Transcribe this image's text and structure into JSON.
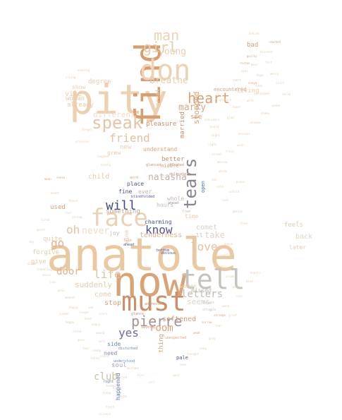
{
  "cloud": {
    "words": [
      {
        "text": "anatole",
        "color": "#ebc9a0"
      },
      {
        "text": "pity",
        "color": "#edd0b0"
      },
      {
        "text": "now",
        "color": "#d9a376"
      },
      {
        "text": "find",
        "color": "#d99c6c"
      },
      {
        "text": "don",
        "color": "#edd3b5"
      },
      {
        "text": "must",
        "color": "#c9916b"
      },
      {
        "text": "tell",
        "color": "#c7c2bd"
      },
      {
        "text": "face",
        "color": "#ead2b6"
      },
      {
        "text": "speak",
        "color": "#e6c5a6"
      },
      {
        "text": "tears",
        "color": "#8a8290"
      },
      {
        "text": "man",
        "color": "#edd3b5"
      },
      {
        "text": "girl",
        "color": "#e8ccad"
      },
      {
        "text": "heart",
        "color": "#d9a376"
      },
      {
        "text": "pierre",
        "color": "#a29294"
      },
      {
        "text": "love",
        "color": "#e0c4a8"
      },
      {
        "text": "will",
        "color": "#3c4a86"
      },
      {
        "text": "know",
        "color": "#4a5590"
      },
      {
        "text": "life",
        "color": "#e2c2a0"
      },
      {
        "text": "letters",
        "color": "#c3bab6"
      },
      {
        "text": "friend",
        "color": "#e2c2a0"
      },
      {
        "text": "young",
        "color": "#ead0b2"
      },
      {
        "text": "breathe",
        "color": "#e8ccab"
      },
      {
        "text": "marry",
        "color": "#d9aa84"
      },
      {
        "text": "natasha",
        "color": "#c5b1a8"
      },
      {
        "text": "oh",
        "color": "#e2c2a0"
      },
      {
        "text": "go",
        "color": "#e0b48d"
      },
      {
        "text": "door",
        "color": "#e0b48d"
      },
      {
        "text": "yes",
        "color": "#6b6e95"
      },
      {
        "text": "room",
        "color": "#d9a376"
      },
      {
        "text": "club",
        "color": "#c8c49e"
      },
      {
        "text": "never",
        "color": "#efdcc6"
      },
      {
        "text": "suddenly",
        "color": "#e8ccab"
      },
      {
        "text": "take",
        "color": "#e0d4c8"
      },
      {
        "text": "stopped",
        "color": "#d9a376"
      },
      {
        "text": "married",
        "color": "#c98f6a"
      },
      {
        "text": "different",
        "color": "#efdcc6"
      },
      {
        "text": "comet",
        "color": "#d7d0ca"
      },
      {
        "text": "softened",
        "color": "#d6a07a"
      },
      {
        "text": "seems",
        "color": "#ddd3c9"
      },
      {
        "text": "stop",
        "color": "#d9a376"
      },
      {
        "text": "come",
        "color": "#e8ccab"
      },
      {
        "text": "tenderness",
        "color": "#e0b48d"
      },
      {
        "text": "something",
        "color": "#c7a992"
      },
      {
        "text": "pleasure",
        "color": "#c98f6a"
      },
      {
        "text": "soul",
        "color": "#a7a7c2"
      },
      {
        "text": "need",
        "color": "#8a8ab0"
      },
      {
        "text": "side",
        "color": "#6a86b5"
      },
      {
        "text": "thing",
        "color": "#d9a376"
      },
      {
        "text": "happened",
        "color": "#5a7bb3"
      },
      {
        "text": "better",
        "color": "#c9916b"
      },
      {
        "text": "understand",
        "color": "#d9a376"
      },
      {
        "text": "middle",
        "color": "#d9a376"
      },
      {
        "text": "place",
        "color": "#4a5590"
      },
      {
        "text": "fine",
        "color": "#4a5590"
      },
      {
        "text": "charming",
        "color": "#4a5590"
      },
      {
        "text": "ever",
        "color": "#c3bab6"
      },
      {
        "text": "whole",
        "color": "#c3bab6"
      },
      {
        "text": "hours",
        "color": "#c3bab6"
      },
      {
        "text": "open",
        "color": "#4a70b0"
      },
      {
        "text": "living",
        "color": "#ead0b2"
      },
      {
        "text": "see",
        "color": "#d9a376"
      },
      {
        "text": "vile",
        "color": "#e8ccab"
      },
      {
        "text": "woman",
        "color": "#e8ccab"
      },
      {
        "text": "already",
        "color": "#e8ccab"
      },
      {
        "text": "degree",
        "color": "#e8ccab"
      },
      {
        "text": "show",
        "color": "#e8ccab"
      },
      {
        "text": "quite",
        "color": "#e8ccab"
      },
      {
        "text": "forgive",
        "color": "#e8ccab"
      },
      {
        "text": "give",
        "color": "#e8ccab"
      },
      {
        "text": "used",
        "color": "#d9a376"
      },
      {
        "text": "child",
        "color": "#e8ccab"
      },
      {
        "text": "bad",
        "color": "#d9a376"
      },
      {
        "text": "feels",
        "color": "#e8ccab"
      },
      {
        "text": "back",
        "color": "#e0d4c8"
      },
      {
        "text": "later",
        "color": "#e8ccab"
      },
      {
        "text": "missed",
        "color": "#c3bab6"
      },
      {
        "text": "women",
        "color": "#e8ccab"
      },
      {
        "text": "great",
        "color": "#e8ccab"
      },
      {
        "text": "pale",
        "color": "#4a5590"
      },
      {
        "text": "joy",
        "color": "#c3bab6"
      },
      {
        "text": "wine",
        "color": "#e8ccab"
      },
      {
        "text": "ll",
        "color": "#c3bab6"
      },
      {
        "text": "new",
        "color": "#e8ccab"
      },
      {
        "text": "grew",
        "color": "#e8ccab"
      },
      {
        "text": "time",
        "color": "#e8ccab"
      },
      {
        "text": "encountered",
        "color": "#d9a376"
      },
      {
        "text": "ahead",
        "color": "#4a5590"
      },
      {
        "text": "blindfolded",
        "color": "#4a5590"
      },
      {
        "text": "addressed",
        "color": "#c98f6a"
      },
      {
        "text": "glance",
        "color": "#c98f6a"
      },
      {
        "text": "several",
        "color": "#c98f6a"
      },
      {
        "text": "unexpected",
        "color": "#d9a376"
      },
      {
        "text": "understood",
        "color": "#6a86b5"
      },
      {
        "text": "right",
        "color": "#6a86b5"
      },
      {
        "text": "disturbed",
        "color": "#6a86b5"
      },
      {
        "text": "ahead",
        "color": "#a29294"
      },
      {
        "text": "delicately",
        "color": "#c98f6a"
      },
      {
        "text": "flashed",
        "color": "#c98f6a"
      },
      {
        "text": "glanced",
        "color": "#c98f6a"
      },
      {
        "text": "word",
        "color": "#d9a376"
      },
      {
        "text": "talk",
        "color": "#d9a376"
      },
      {
        "text": "free",
        "color": "#c3bab6"
      },
      {
        "text": "bottom",
        "color": "#4a5590"
      },
      {
        "text": "obvious",
        "color": "#4a5590"
      },
      {
        "text": "evening",
        "color": "#e8ccab"
      },
      {
        "text": "crying",
        "color": "#e8ccab"
      },
      {
        "text": "forget",
        "color": "#e8ccab"
      },
      {
        "text": "princess",
        "color": "#e8ccab"
      },
      {
        "text": "doubt",
        "color": "#e8ccab"
      },
      {
        "text": "mean",
        "color": "#d9a376"
      },
      {
        "text": "sense",
        "color": "#d9a376"
      },
      {
        "text": "laughed",
        "color": "#e8ccab"
      },
      {
        "text": "kindly",
        "color": "#e8ccab"
      },
      {
        "text": "vast",
        "color": "#e8ccab"
      },
      {
        "text": "exclaimed",
        "color": "#e8ccab"
      },
      {
        "text": "gesture",
        "color": "#e8ccab"
      },
      {
        "text": "blushed",
        "color": "#e8ccab"
      },
      {
        "text": "dear",
        "color": "#e8ccab"
      },
      {
        "text": "eyes",
        "color": "#e8ccab"
      },
      {
        "text": "hope",
        "color": "#e8ccab"
      },
      {
        "text": "hand",
        "color": "#e8ccab"
      },
      {
        "text": "thought",
        "color": "#c3bab6"
      },
      {
        "text": "struggle",
        "color": "#c3bab6"
      },
      {
        "text": "weak",
        "color": "#d9a376"
      },
      {
        "text": "sorrow",
        "color": "#d9a376"
      },
      {
        "text": "strange",
        "color": "#d9a376"
      },
      {
        "text": "hearts",
        "color": "#e8ccab"
      },
      {
        "text": "mind",
        "color": "#e8ccab"
      },
      {
        "text": "clear",
        "color": "#e8ccab"
      },
      {
        "text": "gentle",
        "color": "#e8ccab"
      },
      {
        "text": "rose",
        "color": "#e8ccab"
      },
      {
        "text": "unfold",
        "color": "#e8ccab"
      },
      {
        "text": "pious",
        "color": "#e8ccab"
      },
      {
        "text": "words",
        "color": "#e8ccab"
      },
      {
        "text": "truly",
        "color": "#e8ccab"
      },
      {
        "text": "wish",
        "color": "#e8ccab"
      },
      {
        "text": "anxious",
        "color": "#e8ccab"
      },
      {
        "text": "window",
        "color": "#e8ccab"
      },
      {
        "text": "shame",
        "color": "#e8ccab"
      },
      {
        "text": "spoke",
        "color": "#e8ccab"
      },
      {
        "text": "smile",
        "color": "#e8ccab"
      },
      {
        "text": "visit",
        "color": "#e8ccab"
      },
      {
        "text": "mercy",
        "color": "#e8ccab"
      },
      {
        "text": "felt",
        "color": "#e8ccab"
      },
      {
        "text": "behind",
        "color": "#e8ccab"
      },
      {
        "text": "reached",
        "color": "#d9a376"
      },
      {
        "text": "guilty",
        "color": "#d9a376"
      },
      {
        "text": "rostov",
        "color": "#d9a376"
      },
      {
        "text": "sonya",
        "color": "#d9a376"
      },
      {
        "text": "house",
        "color": "#e8ccab"
      },
      {
        "text": "strong",
        "color": "#e8ccab"
      },
      {
        "text": "lost",
        "color": "#e8ccab"
      },
      {
        "text": "tired",
        "color": "#e8ccab"
      },
      {
        "text": "quiet",
        "color": "#e8ccab"
      },
      {
        "text": "sky",
        "color": "#e8ccab"
      },
      {
        "text": "dream",
        "color": "#e8ccab"
      },
      {
        "text": "trembling",
        "color": "#e8ccab"
      },
      {
        "text": "voice",
        "color": "#e8ccab"
      },
      {
        "text": "lips",
        "color": "#e8ccab"
      },
      {
        "text": "pain",
        "color": "#e8ccab"
      },
      {
        "text": "moment",
        "color": "#e8ccab"
      },
      {
        "text": "happy",
        "color": "#e8ccab"
      },
      {
        "text": "longer",
        "color": "#e8ccab"
      },
      {
        "text": "sad",
        "color": "#e8ccab"
      },
      {
        "text": "scorn",
        "color": "#e8ccab"
      },
      {
        "text": "angry",
        "color": "#e8ccab"
      },
      {
        "text": "wound",
        "color": "#e8ccab"
      },
      {
        "text": "evil",
        "color": "#e8ccab"
      },
      {
        "text": "ready",
        "color": "#e8ccab"
      },
      {
        "text": "sound",
        "color": "#e8ccab"
      },
      {
        "text": "tender",
        "color": "#e8ccab"
      },
      {
        "text": "sleep",
        "color": "#e8ccab"
      },
      {
        "text": "letter",
        "color": "#e8ccab"
      },
      {
        "text": "fear",
        "color": "#e8ccab"
      },
      {
        "text": "gave",
        "color": "#e8ccab"
      },
      {
        "text": "stood",
        "color": "#e8ccab"
      },
      {
        "text": "began",
        "color": "#e8ccab"
      },
      {
        "text": "answer",
        "color": "#e8ccab"
      },
      {
        "text": "light",
        "color": "#e8ccab"
      },
      {
        "text": "street",
        "color": "#e8ccab"
      },
      {
        "text": "moscow",
        "color": "#e8ccab"
      },
      {
        "text": "night",
        "color": "#e8ccab"
      },
      {
        "text": "heard",
        "color": "#e8ccab"
      },
      {
        "text": "shoulders",
        "color": "#e8ccab"
      },
      {
        "text": "glad",
        "color": "#e8ccab"
      },
      {
        "text": "honor",
        "color": "#e8ccab"
      },
      {
        "text": "wife",
        "color": "#e8ccab"
      },
      {
        "text": "fate",
        "color": "#e8ccab"
      },
      {
        "text": "cold",
        "color": "#e8ccab"
      },
      {
        "text": "sat",
        "color": "#e8ccab"
      },
      {
        "text": "dance",
        "color": "#e8ccab"
      },
      {
        "text": "lonely",
        "color": "#e8ccab"
      },
      {
        "text": "madness",
        "color": "#e8ccab"
      },
      {
        "text": "crime",
        "color": "#e8ccab"
      },
      {
        "text": "peace",
        "color": "#e8ccab"
      },
      {
        "text": "ruin",
        "color": "#e8ccab"
      },
      {
        "text": "warm",
        "color": "#e8ccab"
      },
      {
        "text": "grief",
        "color": "#e8ccab"
      },
      {
        "text": "tear",
        "color": "#e8ccab"
      },
      {
        "text": "gray",
        "color": "#e8ccab"
      },
      {
        "text": "song",
        "color": "#e8ccab"
      },
      {
        "text": "tonight",
        "color": "#e8ccab"
      },
      {
        "text": "year",
        "color": "#e8ccab"
      },
      {
        "text": "wait",
        "color": "#e8ccab"
      },
      {
        "text": "call",
        "color": "#e8ccab"
      },
      {
        "text": "kiss",
        "color": "#e8ccab"
      },
      {
        "text": "mistake",
        "color": "#e8ccab"
      },
      {
        "text": "cried",
        "color": "#e8ccab"
      },
      {
        "text": "blame",
        "color": "#e8ccab"
      },
      {
        "text": "hate",
        "color": "#e8ccab"
      },
      {
        "text": "truth",
        "color": "#e8ccab"
      },
      {
        "text": "silence",
        "color": "#e8ccab"
      }
    ]
  }
}
